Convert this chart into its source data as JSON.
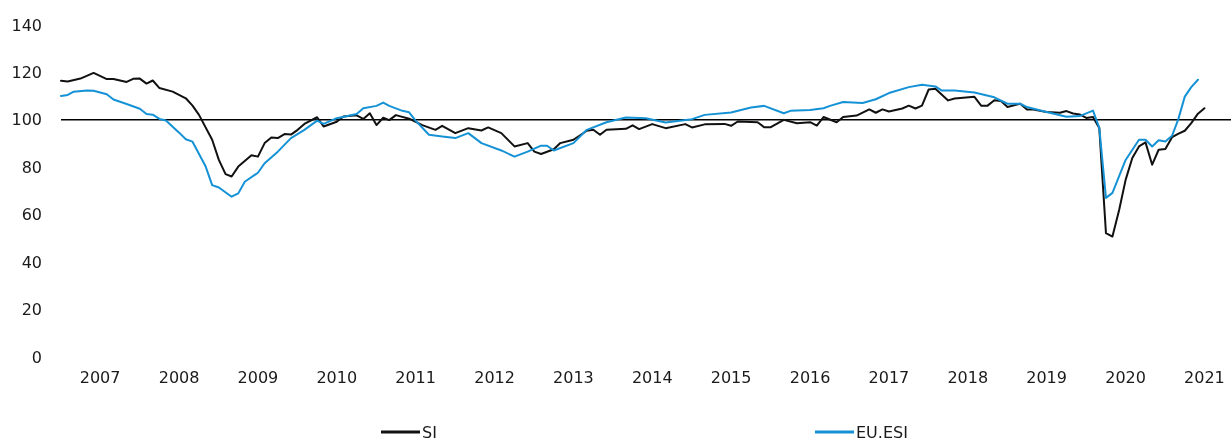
{
  "chart_data": {
    "type": "line",
    "xlim": [
      "2007-01",
      "2021-11"
    ],
    "xticks": [
      {
        "value": "2007-07",
        "label": "2007"
      },
      {
        "value": "2008-07",
        "label": "2008"
      },
      {
        "value": "2009-07",
        "label": "2009"
      },
      {
        "value": "2010-07",
        "label": "2010"
      },
      {
        "value": "2011-07",
        "label": "2011"
      },
      {
        "value": "2012-07",
        "label": "2012"
      },
      {
        "value": "2013-07",
        "label": "2013"
      },
      {
        "value": "2014-07",
        "label": "2014"
      },
      {
        "value": "2015-07",
        "label": "2015"
      },
      {
        "value": "2016-07",
        "label": "2016"
      },
      {
        "value": "2017-07",
        "label": "2017"
      },
      {
        "value": "2018-07",
        "label": "2018"
      },
      {
        "value": "2019-07",
        "label": "2019"
      },
      {
        "value": "2020-07",
        "label": "2020"
      },
      {
        "value": "2021-07",
        "label": "2021"
      }
    ],
    "ylim": [
      0,
      140
    ],
    "yticks": [
      0,
      20,
      40,
      60,
      80,
      100,
      120,
      140
    ],
    "grid": false,
    "legend": "bottom",
    "marker": "none",
    "line_style": "solid",
    "ref_lines": [
      {
        "axis": "y",
        "value": 100,
        "color": "#000000"
      }
    ],
    "series": [
      {
        "name": "SI",
        "color": "#111111",
        "x": [
          "2007-01",
          "2007-02",
          "2007-04",
          "2007-06",
          "2007-08",
          "2007-09",
          "2007-11",
          "2007-12",
          "2008-01",
          "2008-02",
          "2008-03",
          "2008-04",
          "2008-06",
          "2008-08",
          "2008-09",
          "2008-10",
          "2008-12",
          "2009-01",
          "2009-02",
          "2009-03",
          "2009-04",
          "2009-06",
          "2009-07",
          "2009-08",
          "2009-09",
          "2009-10",
          "2009-11",
          "2009-12",
          "2010-01",
          "2010-02",
          "2010-04",
          "2010-05",
          "2010-07",
          "2010-08",
          "2010-10",
          "2010-11",
          "2010-12",
          "2011-01",
          "2011-02",
          "2011-03",
          "2011-04",
          "2011-06",
          "2011-08",
          "2011-10",
          "2011-11",
          "2012-01",
          "2012-03",
          "2012-05",
          "2012-06",
          "2012-08",
          "2012-10",
          "2012-12",
          "2013-01",
          "2013-02",
          "2013-04",
          "2013-05",
          "2013-07",
          "2013-09",
          "2013-10",
          "2013-11",
          "2013-12",
          "2014-03",
          "2014-04",
          "2014-05",
          "2014-07",
          "2014-09",
          "2014-12",
          "2015-01",
          "2015-03",
          "2015-06",
          "2015-07",
          "2015-08",
          "2015-11",
          "2015-12",
          "2016-01",
          "2016-03",
          "2016-05",
          "2016-07",
          "2016-08",
          "2016-09",
          "2016-11",
          "2016-12",
          "2017-02",
          "2017-04",
          "2017-05",
          "2017-06",
          "2017-07",
          "2017-09",
          "2017-10",
          "2017-11",
          "2017-12",
          "2018-01",
          "2018-02",
          "2018-04",
          "2018-05",
          "2018-08",
          "2018-09",
          "2018-10",
          "2018-11",
          "2018-12",
          "2019-01",
          "2019-03",
          "2019-04",
          "2019-05",
          "2019-07",
          "2019-09",
          "2019-10",
          "2019-11",
          "2019-12",
          "2020-01",
          "2020-02",
          "2020-03",
          "2020-04",
          "2020-05",
          "2020-06",
          "2020-07",
          "2020-08",
          "2020-09",
          "2020-10",
          "2020-11",
          "2020-12",
          "2021-01",
          "2021-02",
          "2021-03",
          "2021-04",
          "2021-05",
          "2021-06",
          "2021-07"
        ],
        "values": [
          116.5,
          116.2,
          117.4,
          119.8,
          117.2,
          117.2,
          116,
          117.3,
          117.4,
          115.3,
          116.6,
          113.4,
          111.9,
          109.1,
          106,
          102.1,
          91.6,
          83.1,
          77.1,
          76.1,
          80.3,
          85.1,
          84.5,
          90.2,
          92.6,
          92.3,
          94,
          93.8,
          95.8,
          98.3,
          101.1,
          97.2,
          99.2,
          101.4,
          101.9,
          100.4,
          102.8,
          97.8,
          100.9,
          99.9,
          102,
          100.5,
          97.8,
          95.8,
          97.5,
          94.4,
          96.5,
          95.5,
          96.8,
          94.4,
          88.8,
          90.2,
          86.6,
          85.6,
          87.6,
          90.2,
          91.6,
          95.4,
          95.8,
          93.7,
          95.8,
          96.2,
          97.7,
          96.1,
          98.2,
          96.5,
          98.2,
          96.8,
          98.1,
          98.3,
          97.5,
          99.3,
          99,
          96.9,
          96.9,
          100,
          98.6,
          99,
          97.6,
          101.2,
          99,
          101.2,
          101.8,
          104.4,
          103,
          104.4,
          103.5,
          104.8,
          106,
          104.8,
          106,
          112.8,
          113.1,
          108.2,
          109,
          109.7,
          106,
          106,
          108.3,
          108,
          105.4,
          106.8,
          104.4,
          104.4,
          103.3,
          103,
          103.7,
          102.7,
          102.3,
          100.8,
          101.2,
          96.6,
          52.2,
          50.8,
          62,
          74.7,
          83.9,
          88.8,
          90.5,
          81.1,
          87.4,
          87.7,
          92.7,
          94.1,
          95.4,
          98.6,
          102.6,
          104.9
        ]
      },
      {
        "name": "EU.ESI",
        "color": "#1592d6",
        "x": [
          "2007-01",
          "2007-02",
          "2007-03",
          "2007-05",
          "2007-06",
          "2007-08",
          "2007-09",
          "2007-11",
          "2008-01",
          "2008-02",
          "2008-03",
          "2008-04",
          "2008-05",
          "2008-07",
          "2008-08",
          "2008-09",
          "2008-11",
          "2008-12",
          "2009-01",
          "2009-03",
          "2009-04",
          "2009-05",
          "2009-07",
          "2009-08",
          "2009-10",
          "2009-12",
          "2010-02",
          "2010-04",
          "2010-05",
          "2010-07",
          "2010-10",
          "2010-11",
          "2011-01",
          "2011-02",
          "2011-03",
          "2011-05",
          "2011-06",
          "2011-07",
          "2011-09",
          "2011-11",
          "2012-01",
          "2012-03",
          "2012-05",
          "2012-08",
          "2012-10",
          "2012-12",
          "2013-02",
          "2013-03",
          "2013-04",
          "2013-07",
          "2013-09",
          "2013-12",
          "2014-03",
          "2014-06",
          "2014-09",
          "2015-01",
          "2015-03",
          "2015-07",
          "2015-10",
          "2015-12",
          "2016-03",
          "2016-04",
          "2016-07",
          "2016-09",
          "2016-10",
          "2016-12",
          "2017-03",
          "2017-05",
          "2017-07",
          "2017-10",
          "2017-12",
          "2018-02",
          "2018-03",
          "2018-05",
          "2018-08",
          "2018-11",
          "2019-01",
          "2019-03",
          "2019-04",
          "2019-07",
          "2019-10",
          "2019-12",
          "2020-02",
          "2020-03",
          "2020-04",
          "2020-05",
          "2020-07",
          "2020-09",
          "2020-10",
          "2020-11",
          "2020-12",
          "2021-01",
          "2021-02",
          "2021-03",
          "2021-04",
          "2021-05",
          "2021-06"
        ],
        "values": [
          110.1,
          110.5,
          111.9,
          112.4,
          112.3,
          110.8,
          108.6,
          106.7,
          104.7,
          102.5,
          102.2,
          100.4,
          99.7,
          94.6,
          91.8,
          90.8,
          80.3,
          72.5,
          71.5,
          67.6,
          69,
          73.9,
          77.7,
          81.7,
          86.6,
          92.3,
          95.8,
          99.7,
          98.3,
          100.7,
          102.5,
          104.9,
          105.9,
          107.3,
          105.9,
          103.8,
          103.2,
          99.7,
          93.7,
          93,
          92.3,
          94.4,
          90.2,
          87.1,
          84.5,
          86.6,
          89.1,
          89.1,
          87.1,
          90.2,
          95.8,
          99,
          101,
          100.7,
          98.9,
          100.3,
          102.1,
          103.1,
          105.2,
          105.9,
          102.8,
          103.8,
          104.2,
          104.9,
          105.9,
          107.5,
          107.1,
          108.7,
          111.3,
          113.8,
          114.8,
          114.1,
          112.4,
          112.4,
          111.5,
          109.5,
          106.8,
          106.8,
          105.4,
          103.3,
          101.3,
          101.6,
          103.9,
          96.6,
          67.1,
          69.2,
          83.1,
          91.6,
          91.6,
          88.8,
          91.4,
          90.9,
          93.3,
          100,
          109.8,
          113.8,
          116.9
        ]
      }
    ]
  }
}
